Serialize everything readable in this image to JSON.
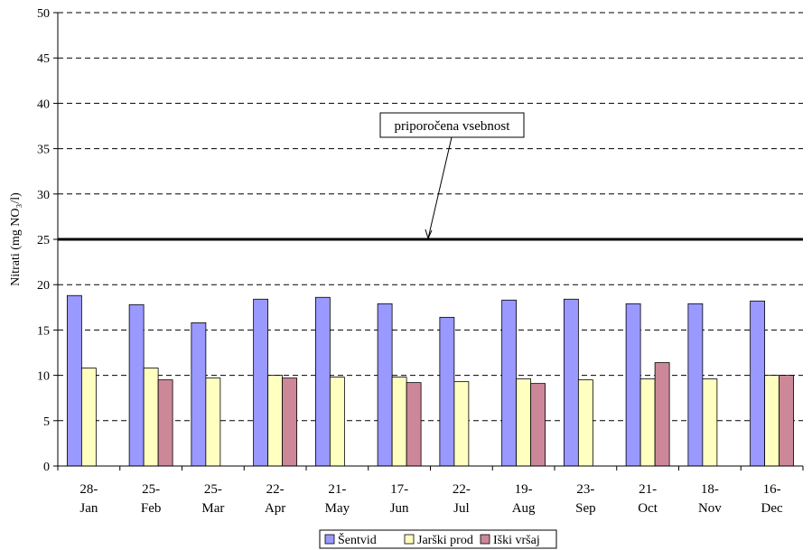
{
  "chart_data": {
    "type": "bar",
    "title": "",
    "xlabel": "",
    "ylabel": "Nitrati (mg NO₃/l)",
    "ylim": [
      0,
      50
    ],
    "yticks": [
      0,
      5,
      10,
      15,
      20,
      25,
      30,
      35,
      40,
      45,
      50
    ],
    "grid": "dashed horizontal",
    "legend_position": "bottom",
    "categories": [
      [
        "28-",
        "Jan"
      ],
      [
        "25-",
        "Feb"
      ],
      [
        "25-",
        "Mar"
      ],
      [
        "22-",
        "Apr"
      ],
      [
        "21-",
        "May"
      ],
      [
        "17-",
        "Jun"
      ],
      [
        "22-",
        "Jul"
      ],
      [
        "19-",
        "Aug"
      ],
      [
        "23-",
        "Sep"
      ],
      [
        "21-",
        "Oct"
      ],
      [
        "18-",
        "Nov"
      ],
      [
        "16-",
        "Dec"
      ]
    ],
    "series": [
      {
        "name": "Šentvid",
        "color": "#9999ff",
        "values": [
          18.8,
          17.8,
          15.8,
          18.4,
          18.6,
          17.9,
          16.4,
          18.3,
          18.4,
          17.9,
          17.9,
          18.2
        ]
      },
      {
        "name": "Jarški prod",
        "color": "#ffffc0",
        "values": [
          10.8,
          10.8,
          9.7,
          10.0,
          9.8,
          9.8,
          9.3,
          9.6,
          9.5,
          9.6,
          9.6,
          10.0
        ]
      },
      {
        "name": "Iški vršaj",
        "color": "#cc8899",
        "values": [
          null,
          9.5,
          null,
          9.7,
          null,
          9.2,
          null,
          9.1,
          null,
          11.4,
          null,
          10.0
        ]
      }
    ],
    "reference_line": {
      "value": 25,
      "label": "priporočena vsebnost"
    }
  }
}
